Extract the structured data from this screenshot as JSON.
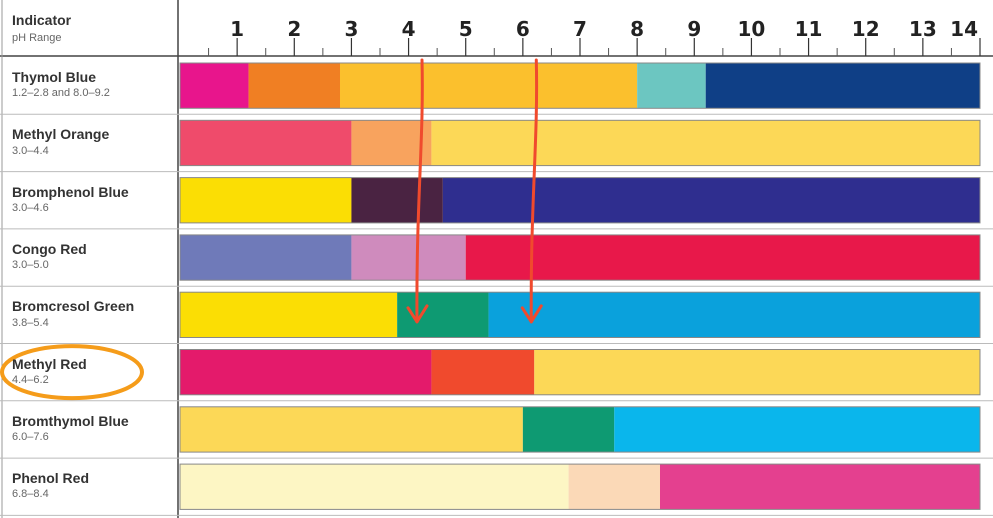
{
  "chart_data": {
    "type": "bar",
    "header": {
      "indicator_label": "Indicator",
      "range_label": "pH Range"
    },
    "x_ticks": [
      "1",
      "2",
      "3",
      "4",
      "5",
      "6",
      "7",
      "8",
      "9",
      "10",
      "11",
      "12",
      "13",
      "14"
    ],
    "xlim": [
      0,
      14
    ],
    "rows": [
      {
        "name": "Thymol Blue",
        "range": "1.2–2.8 and 8.0–9.2",
        "segments": [
          {
            "start": 0,
            "end": 1.2,
            "color": "#e8158c"
          },
          {
            "start": 1.2,
            "end": 2.8,
            "color": "#f07f23"
          },
          {
            "start": 2.8,
            "end": 8.0,
            "color": "#fbc02d"
          },
          {
            "start": 8.0,
            "end": 9.2,
            "color": "#6cc6c1"
          },
          {
            "start": 9.2,
            "end": 14,
            "color": "#0f3f86"
          }
        ]
      },
      {
        "name": "Methyl Orange",
        "range": "3.0–4.4",
        "segments": [
          {
            "start": 0,
            "end": 3.0,
            "color": "#ef4b6b"
          },
          {
            "start": 3.0,
            "end": 4.4,
            "color": "#f8a35e"
          },
          {
            "start": 4.4,
            "end": 14,
            "color": "#fcd857"
          }
        ]
      },
      {
        "name": "Bromphenol Blue",
        "range": "3.0–4.6",
        "segments": [
          {
            "start": 0,
            "end": 3.0,
            "color": "#fbde04"
          },
          {
            "start": 3.0,
            "end": 4.6,
            "color": "#4a2342"
          },
          {
            "start": 4.6,
            "end": 14,
            "color": "#2f2e8f"
          }
        ]
      },
      {
        "name": "Congo Red",
        "range": "3.0–5.0",
        "segments": [
          {
            "start": 0,
            "end": 3.0,
            "color": "#6f7ab9"
          },
          {
            "start": 3.0,
            "end": 5.0,
            "color": "#cf8bbd"
          },
          {
            "start": 5.0,
            "end": 14,
            "color": "#e8184a"
          }
        ]
      },
      {
        "name": "Bromcresol Green",
        "range": "3.8–5.4",
        "segments": [
          {
            "start": 0,
            "end": 3.8,
            "color": "#fbde04"
          },
          {
            "start": 3.8,
            "end": 5.4,
            "color": "#0e9a72"
          },
          {
            "start": 5.4,
            "end": 14,
            "color": "#0aa1dc"
          }
        ]
      },
      {
        "name": "Methyl Red",
        "range": "4.4–6.2",
        "segments": [
          {
            "start": 0,
            "end": 4.4,
            "color": "#e41a6b"
          },
          {
            "start": 4.4,
            "end": 6.2,
            "color": "#f04a2d"
          },
          {
            "start": 6.2,
            "end": 14,
            "color": "#fcd857"
          }
        ]
      },
      {
        "name": "Bromthymol Blue",
        "range": "6.0–7.6",
        "segments": [
          {
            "start": 0,
            "end": 6.0,
            "color": "#fcd857"
          },
          {
            "start": 6.0,
            "end": 7.6,
            "color": "#0e9a72"
          },
          {
            "start": 7.6,
            "end": 14,
            "color": "#0ab6ec"
          }
        ]
      },
      {
        "name": "Phenol Red",
        "range": "6.8–8.4",
        "segments": [
          {
            "start": 0,
            "end": 6.8,
            "color": "#fdf6c4"
          },
          {
            "start": 6.8,
            "end": 8.4,
            "color": "#fbd9b7"
          },
          {
            "start": 8.4,
            "end": 14,
            "color": "#e4408f"
          }
        ]
      }
    ],
    "annotations": {
      "arrows_at_ph": [
        4.2,
        6.2
      ],
      "arrow_color": "#f04a2d",
      "highlighted_row": "Methyl Red",
      "highlight_color": "#f59c1a"
    },
    "grid": true,
    "legend": "none"
  }
}
